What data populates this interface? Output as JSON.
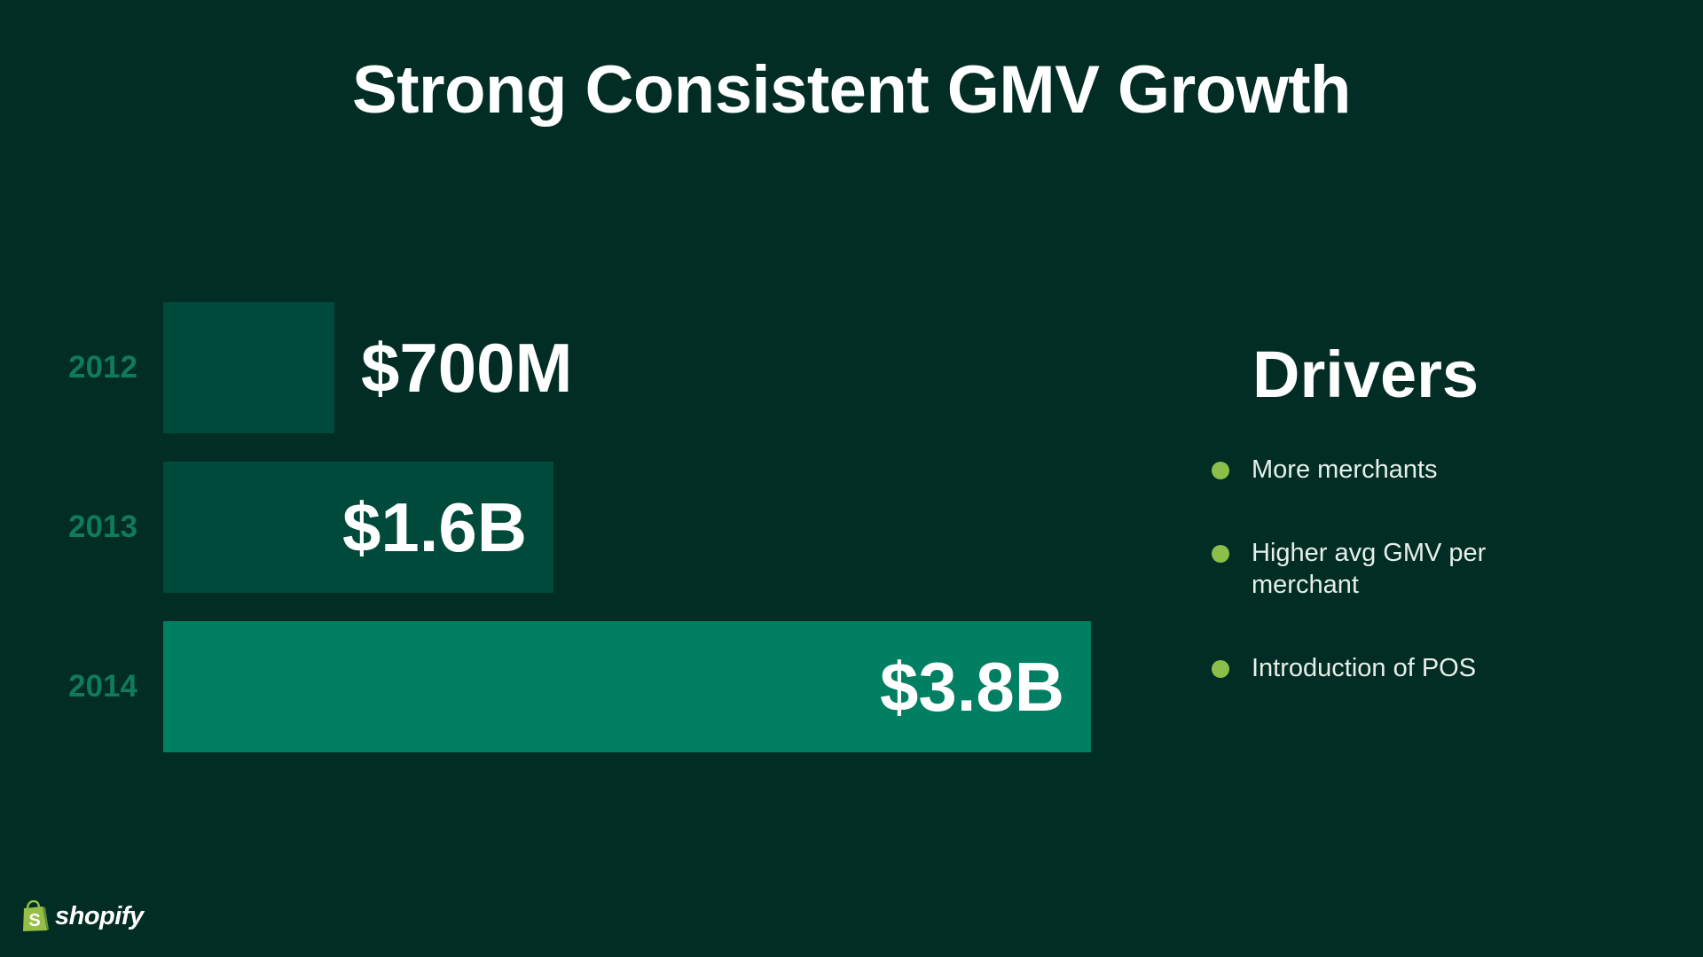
{
  "slide": {
    "title": "Strong Consistent GMV Growth"
  },
  "chart_data": {
    "type": "bar",
    "orientation": "horizontal",
    "title": "Strong Consistent GMV Growth",
    "categories": [
      "2012",
      "2013",
      "2014"
    ],
    "values": [
      0.7,
      1.6,
      3.8
    ],
    "value_unit": "$B",
    "data_labels": [
      "$700M",
      "$1.6B",
      "$3.8B"
    ],
    "xlabel": "",
    "ylabel": "",
    "xlim": [
      0,
      3.8
    ],
    "grid": false,
    "colors": [
      "#004a3b",
      "#004a3b",
      "#007f62"
    ]
  },
  "drivers": {
    "title": "Drivers",
    "items": [
      "More merchants",
      "Higher avg GMV per merchant",
      "Introduction of POS"
    ]
  },
  "logo": {
    "text": "shopify",
    "icon": "shopping-bag-icon"
  },
  "colors": {
    "background": "#022d24",
    "year_label": "#107a5a",
    "bullet": "#8bbf4a",
    "logo_bag": "#95bf47"
  }
}
